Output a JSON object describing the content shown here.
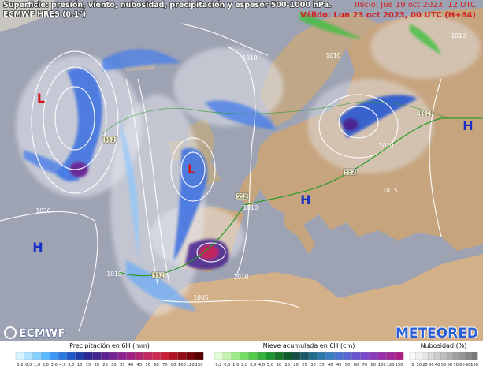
{
  "header": {
    "title": "Superficie: presión, viento, nubosidad, precipitación y espesor 500-1000 hPa.",
    "model": "ECMWF HRES (0.1°)",
    "run": "Inicio: Jue 19 oct 2023, 12 UTC",
    "valid": "Válido: Lun 23 oct 2023, 00 UTC (H+84)"
  },
  "map": {
    "pressure_centers": [
      {
        "label": "L",
        "color": "#d01818"
      },
      {
        "label": "L",
        "color": "#d01818"
      },
      {
        "label": "H",
        "color": "#1a2fc8"
      },
      {
        "label": "H",
        "color": "#1a2fc8"
      },
      {
        "label": "H",
        "color": "#1a2fc8"
      }
    ],
    "isobar_labels": [
      "1010",
      "1010",
      "1020",
      "1015",
      "1010",
      "1005",
      "1010",
      "1010",
      "1015",
      "1010"
    ],
    "thickness_labels": [
      "552",
      "552",
      "552",
      "552",
      "552"
    ]
  },
  "logos": {
    "left": "ECMWF",
    "right": "METEORED"
  },
  "legend": {
    "precipitation": {
      "title": "Precipitación en 6H (mm)",
      "ticks": [
        "0,2",
        "0,5",
        "1,0",
        "2,0",
        "3,0",
        "4,0",
        "5,0",
        "10",
        "15",
        "20",
        "25",
        "30",
        "35",
        "40",
        "45",
        "50",
        "60",
        "70",
        "80",
        "100",
        "120",
        "150"
      ],
      "colors": [
        "#d6f4ff",
        "#b0e6ff",
        "#86d2ff",
        "#5cb8ff",
        "#3c98f4",
        "#2a78e0",
        "#1f58c8",
        "#1c3ca8",
        "#2a2890",
        "#42248e",
        "#5c2290",
        "#762292",
        "#8e2290",
        "#a22284",
        "#b42474",
        "#c22862",
        "#cc2a4e",
        "#c81e36",
        "#b01424",
        "#920c14",
        "#74060a",
        "#580204"
      ]
    },
    "snow": {
      "title": "Nieve acumulada en 6H (cm)",
      "ticks": [
        "0,2",
        "0,5",
        "1,0",
        "2,0",
        "3,0",
        "4,0",
        "5,0",
        "10",
        "15",
        "20",
        "25",
        "30",
        "35",
        "40",
        "45",
        "50",
        "60",
        "70",
        "80",
        "100",
        "120",
        "150"
      ],
      "colors": [
        "#e4fbd8",
        "#c4f4b0",
        "#9eea88",
        "#76dc66",
        "#52ca4c",
        "#34b03c",
        "#1e922e",
        "#127424",
        "#0e5a2a",
        "#145046",
        "#1a5a6a",
        "#226a8c",
        "#2c78aa",
        "#3a7ec4",
        "#4a74d0",
        "#5a66d4",
        "#6a56d0",
        "#7a48c8",
        "#8a3cbc",
        "#9830ac",
        "#a2269a",
        "#aa1e86"
      ]
    },
    "cloud": {
      "title": "Nubosidad (%)",
      "ticks": [
        "5",
        "10",
        "20",
        "30",
        "40",
        "50",
        "60",
        "70",
        "80",
        "90",
        "100"
      ],
      "colors": [
        "#fafafa",
        "#f0f0f0",
        "#e4e4e4",
        "#d8d8d8",
        "#cccccc",
        "#bebebe",
        "#b0b0b0",
        "#a2a2a2",
        "#949494",
        "#868686",
        "#787878"
      ]
    }
  }
}
